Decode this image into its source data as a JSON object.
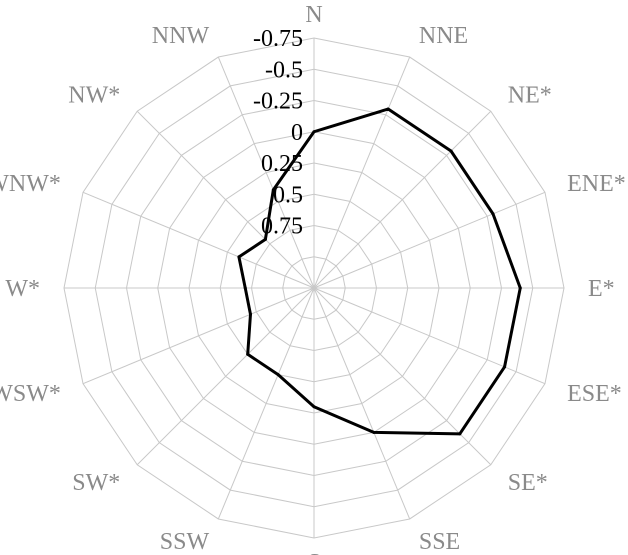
{
  "chart_data": {
    "type": "radar",
    "categories": [
      "N",
      "NNE",
      "NE*",
      "ENE*",
      "E*",
      "ESE*",
      "SE*",
      "SSE",
      "S",
      "SSW",
      "SW*",
      "WSW*",
      "W*",
      "WNW*",
      "NW*",
      "NNW"
    ],
    "series": [
      {
        "values": [
          0.0,
          -0.3,
          -0.3,
          -0.3,
          -0.4,
          -0.4,
          -0.4,
          0.0,
          0.3,
          0.5,
          0.5,
          0.7,
          0.7,
          0.6,
          0.7,
          0.4
        ]
      }
    ],
    "radial_axis": {
      "min": -0.75,
      "max": 1.25,
      "ticks": [
        -0.75,
        -0.5,
        -0.25,
        0,
        0.25,
        0.5,
        0.75
      ],
      "tick_labels": [
        "-0.75",
        "-0.5",
        "-0.25",
        "0",
        "0.25",
        "0.5",
        "0.75"
      ],
      "reversed": true
    },
    "grid": true,
    "legend": "none",
    "colors": {
      "series": "#000000",
      "grid": "#c8c8c8",
      "category_label": "#8a8a8a",
      "tick_label": "#000000"
    }
  }
}
